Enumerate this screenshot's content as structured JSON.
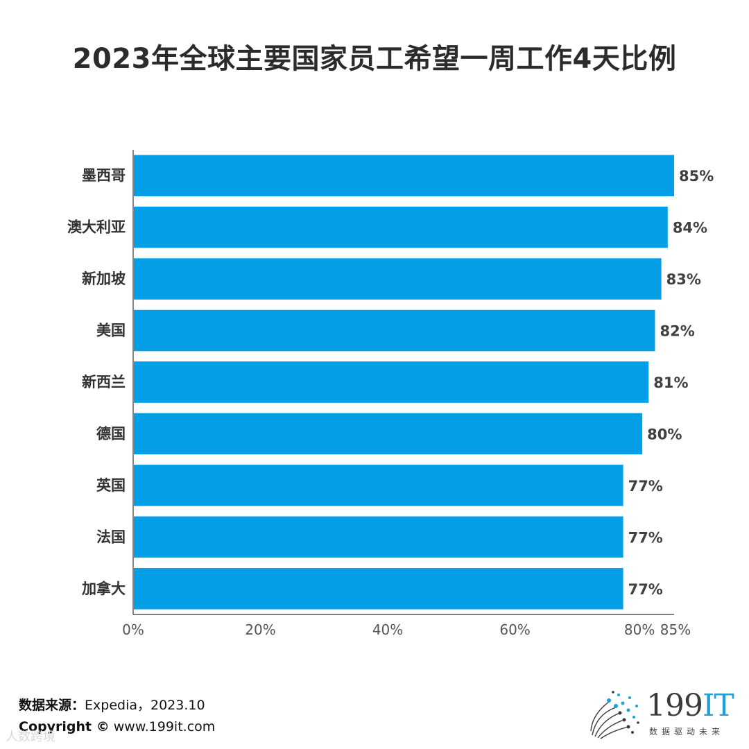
{
  "chart_data": {
    "type": "bar",
    "orientation": "horizontal",
    "title": "2023年全球主要国家员工希望一周工作4天比例",
    "categories": [
      "墨西哥",
      "澳大利亚",
      "新加坡",
      "美国",
      "新西兰",
      "德国",
      "英国",
      "法国",
      "加拿大"
    ],
    "values": [
      85,
      84,
      83,
      82,
      81,
      80,
      77,
      77,
      77
    ],
    "value_labels": [
      "85%",
      "84%",
      "83%",
      "82%",
      "81%",
      "80%",
      "77%",
      "77%",
      "77%"
    ],
    "xlim": [
      0,
      85
    ],
    "x_ticks": [
      0,
      20,
      40,
      60,
      80,
      85
    ],
    "x_tick_labels": [
      "0%",
      "20%",
      "40%",
      "60%",
      "80%",
      "85%"
    ],
    "xlabel": "",
    "ylabel": "",
    "grid": false,
    "bar_color": "#049fe6"
  },
  "footer": {
    "source_label": "数据来源：",
    "source_value": "Expedia，2023.10",
    "copyright_label": "Copyright ©",
    "copyright_value": "www.199it.com"
  },
  "logo": {
    "name_digits": "199",
    "name_letters": "IT",
    "tagline": "数据驱动未来"
  },
  "watermark": "人数跨境"
}
